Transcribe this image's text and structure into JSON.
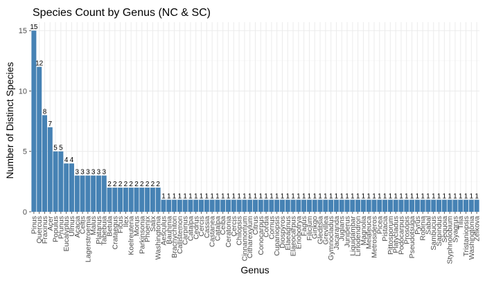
{
  "chart_data": {
    "type": "bar",
    "title": "Species Count by Genus (NC & SC)",
    "xlabel": "Genus",
    "ylabel": "Number of Distinct Species",
    "ylim": [
      0,
      15.7
    ],
    "yticks": [
      0,
      5,
      10,
      15
    ],
    "grid": true,
    "bar_color": "#4682b4",
    "categories": [
      "Pinus",
      "Quercus",
      "Fraxinus",
      "Acer",
      "Populus",
      "Prunus",
      "Eucalyptus",
      "Ulmus",
      "Acacia",
      "Celtis",
      "Lagerstroemia",
      "Malus",
      "Platanus",
      "Tabebuia",
      "Betula",
      "Crataegus",
      "Ficus",
      "Ilex",
      "Koelreuteria",
      "Morus",
      "Parkinsonia",
      "Phoenix",
      "Salix",
      "Washingtonia",
      "Aesculus",
      "Bauhinia",
      "Brachychiton",
      "Callistemon",
      "Carpinus",
      "Catalpa",
      "Cedrus",
      "Cercis",
      "Cassia",
      "Castanea",
      "Catalpa",
      "Ceiba",
      "Ceratonia",
      "Cercis",
      "Chilopsis",
      "Cinnamomum",
      "Citharexylum",
      "Citrus",
      "Conocarpus",
      "Cordia",
      "Cornus",
      "Cupaniopsis",
      "Diospyros",
      "Elaeagnus",
      "Elaeocarpus",
      "Eriobotrya",
      "Fagus",
      "Filicium",
      "Ginkgo",
      "Gleditsia",
      "Grevillea",
      "Gymnocladus",
      "Jacaranda",
      "Juglans",
      "Juniperus",
      "Liquidambar",
      "Liriodendron",
      "Magnolia",
      "Melaleuca",
      "Metrosideros",
      "Picea",
      "Pistacia",
      "Pittosporum",
      "Platycladus",
      "Podocarpus",
      "Prosopis",
      "Pseudotsuga",
      "Pyrus",
      "Robinia",
      "Sabal",
      "Sambucus",
      "Sapindus",
      "Sequoia",
      "Styphnolobium",
      "Syagrus",
      "Tilia",
      "Tristaniopsis",
      "Washingtonia",
      "Zelkova"
    ],
    "values": [
      15,
      12,
      8,
      7,
      5,
      5,
      4,
      4,
      3,
      3,
      3,
      3,
      3,
      3,
      2,
      2,
      2,
      2,
      2,
      2,
      2,
      2,
      2,
      2,
      1,
      1,
      1,
      1,
      1,
      1,
      1,
      1,
      1,
      1,
      1,
      1,
      1,
      1,
      1,
      1,
      1,
      1,
      1,
      1,
      1,
      1,
      1,
      1,
      1,
      1,
      1,
      1,
      1,
      1,
      1,
      1,
      1,
      1,
      1,
      1,
      1,
      1,
      1,
      1,
      1,
      1,
      1,
      1,
      1,
      1,
      1,
      1,
      1,
      1,
      1,
      1,
      1,
      1,
      1,
      1,
      1,
      1,
      1
    ]
  }
}
